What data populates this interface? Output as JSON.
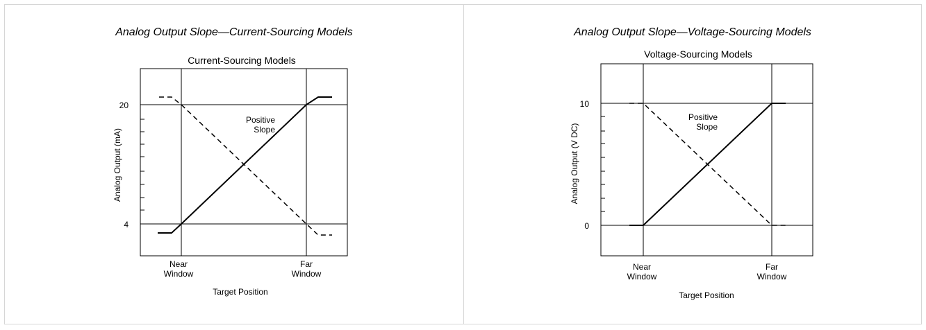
{
  "panels": [
    {
      "caption": "Analog Output Slope—Current-Sourcing Models",
      "title": "Current-Sourcing Models",
      "ylabel": "Analog Output (mA)",
      "xlabel": "Target Position",
      "y_top_label": "20",
      "y_bottom_label": "4",
      "near_lines": [
        "Near",
        "Window"
      ],
      "far_lines": [
        "Far",
        "Window"
      ],
      "slope_lines": [
        "Positive",
        "Slope"
      ]
    },
    {
      "caption": "Analog Output Slope—Voltage-Sourcing Models",
      "title": "Voltage-Sourcing Models",
      "ylabel": "Analog Output (V DC)",
      "xlabel": "Target Position",
      "y_top_label": "10",
      "y_bottom_label": "0",
      "near_lines": [
        "Near",
        "Window"
      ],
      "far_lines": [
        "Far",
        "Window"
      ],
      "slope_lines": [
        "Positive",
        "Slope"
      ]
    }
  ]
}
